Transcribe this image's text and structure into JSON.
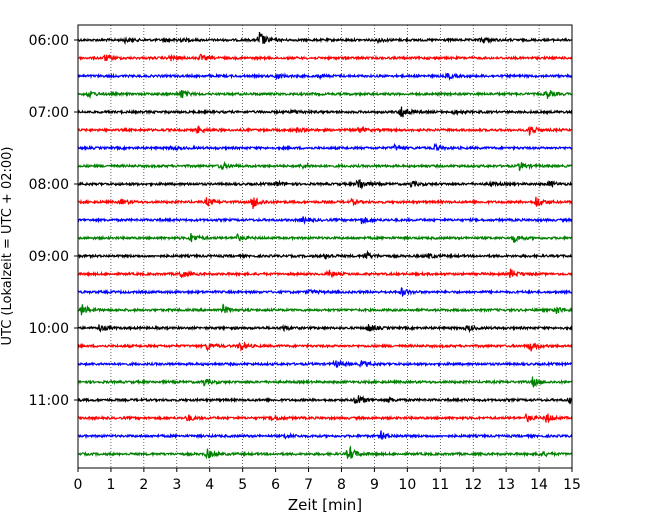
{
  "chart_data": {
    "type": "line",
    "title": "",
    "xlabel": "Zeit  [min]",
    "ylabel": "UTC (Lokalzeit = UTC + 02:00)",
    "xlim": [
      0,
      15
    ],
    "x_ticks": [
      "0",
      "1",
      "2",
      "3",
      "4",
      "5",
      "6",
      "7",
      "8",
      "9",
      "10",
      "11",
      "12",
      "13",
      "14",
      "15"
    ],
    "y_tick_labels": [
      "06:00",
      "07:00",
      "08:00",
      "09:00",
      "10:00",
      "11:00"
    ],
    "grid": "vertical dotted",
    "legend": "none",
    "trace_colors": [
      "#000000",
      "#ff0000",
      "#0000ff",
      "#008000"
    ],
    "traces": [
      {
        "hour": "06:00",
        "color": "#000000",
        "events": [
          [
            5.5,
            1.0
          ],
          [
            1.4,
            0.25
          ],
          [
            2.6,
            0.2
          ],
          [
            3.0,
            0.25
          ],
          [
            9.1,
            0.25
          ],
          [
            12.2,
            0.2
          ],
          [
            12.3,
            0.2
          ]
        ]
      },
      {
        "hour": "06:15",
        "color": "#ff0000",
        "events": [
          [
            0.8,
            0.4
          ],
          [
            2.8,
            0.35
          ],
          [
            3.7,
            0.35
          ]
        ]
      },
      {
        "hour": "06:30",
        "color": "#0000ff",
        "events": [
          [
            6.0,
            0.4
          ],
          [
            7.3,
            0.2
          ],
          [
            11.2,
            0.35
          ]
        ]
      },
      {
        "hour": "06:45",
        "color": "#008000",
        "events": [
          [
            0.3,
            0.4
          ],
          [
            3.1,
            0.6
          ],
          [
            14.2,
            0.6
          ]
        ]
      },
      {
        "hour": "07:00",
        "color": "#000000",
        "events": [
          [
            6.5,
            0.35
          ],
          [
            9.8,
            0.9
          ],
          [
            11.4,
            0.2
          ]
        ]
      },
      {
        "hour": "07:15",
        "color": "#ff0000",
        "events": [
          [
            3.6,
            0.4
          ],
          [
            6.6,
            0.3
          ],
          [
            8.5,
            0.35
          ],
          [
            13.7,
            0.7
          ]
        ]
      },
      {
        "hour": "07:30",
        "color": "#0000ff",
        "events": [
          [
            2.8,
            0.3
          ],
          [
            9.6,
            0.3
          ],
          [
            10.8,
            0.45
          ]
        ]
      },
      {
        "hour": "07:45",
        "color": "#008000",
        "events": [
          [
            4.3,
            0.5
          ],
          [
            6.8,
            0.25
          ],
          [
            13.4,
            0.5
          ]
        ]
      },
      {
        "hour": "08:00",
        "color": "#000000",
        "events": [
          [
            6.0,
            0.3
          ],
          [
            8.5,
            0.8
          ],
          [
            10.1,
            0.4
          ],
          [
            12.5,
            0.25
          ],
          [
            14.3,
            0.35
          ]
        ]
      },
      {
        "hour": "08:15",
        "color": "#ff0000",
        "events": [
          [
            1.3,
            0.3
          ],
          [
            3.9,
            0.45
          ],
          [
            5.3,
            0.8
          ],
          [
            8.3,
            0.3
          ],
          [
            13.9,
            0.7
          ]
        ]
      },
      {
        "hour": "08:30",
        "color": "#0000ff",
        "events": [
          [
            6.8,
            0.35
          ],
          [
            8.6,
            0.45
          ]
        ]
      },
      {
        "hour": "08:45",
        "color": "#008000",
        "events": [
          [
            3.4,
            0.6
          ],
          [
            4.8,
            0.4
          ],
          [
            13.2,
            0.5
          ]
        ]
      },
      {
        "hour": "09:00",
        "color": "#000000",
        "events": [
          [
            7.5,
            0.3
          ],
          [
            8.7,
            0.6
          ],
          [
            10.6,
            0.3
          ]
        ]
      },
      {
        "hour": "09:15",
        "color": "#ff0000",
        "events": [
          [
            3.1,
            0.5
          ],
          [
            7.6,
            0.45
          ],
          [
            13.1,
            0.6
          ]
        ]
      },
      {
        "hour": "09:30",
        "color": "#0000ff",
        "events": [
          [
            9.8,
            0.5
          ],
          [
            7.0,
            0.25
          ]
        ]
      },
      {
        "hour": "09:45",
        "color": "#008000",
        "events": [
          [
            0.1,
            0.7
          ],
          [
            4.4,
            0.5
          ],
          [
            14.5,
            0.5
          ]
        ]
      },
      {
        "hour": "10:00",
        "color": "#000000",
        "events": [
          [
            0.6,
            0.45
          ],
          [
            6.2,
            0.3
          ],
          [
            8.8,
            0.5
          ],
          [
            11.8,
            0.4
          ]
        ]
      },
      {
        "hour": "10:15",
        "color": "#ff0000",
        "events": [
          [
            3.9,
            0.45
          ],
          [
            4.9,
            0.6
          ],
          [
            13.7,
            0.65
          ]
        ]
      },
      {
        "hour": "10:30",
        "color": "#0000ff",
        "events": [
          [
            7.8,
            0.45
          ],
          [
            8.6,
            0.4
          ]
        ]
      },
      {
        "hour": "10:45",
        "color": "#008000",
        "events": [
          [
            3.8,
            0.45
          ],
          [
            13.8,
            0.5
          ]
        ]
      },
      {
        "hour": "11:00",
        "color": "#000000",
        "events": [
          [
            8.4,
            0.9
          ],
          [
            9.4,
            0.25
          ],
          [
            14.9,
            0.35
          ]
        ]
      },
      {
        "hour": "11:15",
        "color": "#ff0000",
        "events": [
          [
            3.3,
            0.45
          ],
          [
            5.9,
            0.45
          ],
          [
            13.6,
            0.45
          ],
          [
            14.2,
            0.6
          ]
        ]
      },
      {
        "hour": "11:30",
        "color": "#0000ff",
        "events": [
          [
            6.3,
            0.25
          ],
          [
            9.2,
            0.5
          ]
        ]
      },
      {
        "hour": "11:45",
        "color": "#008000",
        "events": [
          [
            3.9,
            0.6
          ],
          [
            8.2,
            1.0
          ],
          [
            14.0,
            0.45
          ]
        ]
      }
    ]
  }
}
